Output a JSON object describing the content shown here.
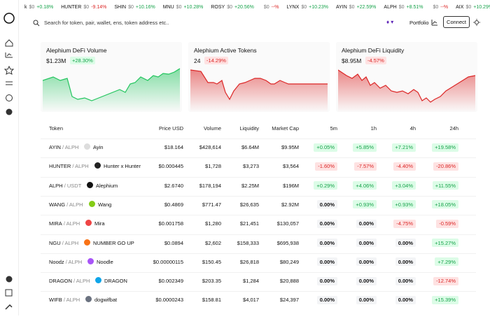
{
  "ticker": [
    {
      "name": "k",
      "price": "$0",
      "change": "+0.18%"
    },
    {
      "name": "HUNTER",
      "price": "$0",
      "change": "-9.14%"
    },
    {
      "name": "SHIN",
      "price": "$0",
      "change": "+10.16%"
    },
    {
      "name": "MNU",
      "price": "$0",
      "change": "+10.28%"
    },
    {
      "name": "ROSY",
      "price": "$0",
      "change": "+20.56%"
    },
    {
      "name": "",
      "price": "$0",
      "change": "--%"
    },
    {
      "name": "LYNX",
      "price": "$0",
      "change": "+10.23%"
    },
    {
      "name": "AYIN",
      "price": "$0",
      "change": "+22.59%"
    },
    {
      "name": "ALPH",
      "price": "$0",
      "change": "+8.51%"
    },
    {
      "name": "",
      "price": "$0",
      "change": "--%"
    },
    {
      "name": "AIX",
      "price": "$0",
      "change": "+10.29%"
    }
  ],
  "header": {
    "search": "Search for token, pair, wallet, ens, token address etc..",
    "portfolio": "Portfolio",
    "connect": "Connect"
  },
  "cards": [
    {
      "title": "Alephium DeFi Volume",
      "value": "$1.23M",
      "change": "+28.30%"
    },
    {
      "title": "Alephium Active Tokens",
      "value": "24",
      "change": "-14.29%"
    },
    {
      "title": "Alephium DeFi Liquidity",
      "value": "$8.95M",
      "change": "-4.57%"
    }
  ],
  "table": {
    "columns": [
      "Token",
      "Price USD",
      "Volume",
      "Liquidity",
      "Market Cap",
      "5m",
      "1h",
      "4h",
      "24h"
    ],
    "rows": [
      {
        "base": "AYIN",
        "quote": "/ ALPH",
        "name": "Ayin",
        "cells": [
          "$18.164",
          "$428,614",
          "$6.64M",
          "$9.95M",
          "+0.05%",
          "+5.85%",
          "+7.21%",
          "+19.58%"
        ]
      },
      {
        "base": "HUNTER",
        "quote": "/ ALPH",
        "name": "Hunter x Hunter",
        "cells": [
          "$0.000445",
          "$1,728",
          "$3,273",
          "$3,564",
          "-1.60%",
          "-7.57%",
          "-4.40%",
          "-20.86%"
        ]
      },
      {
        "base": "ALPH",
        "quote": "/ USDT",
        "name": "Alephium",
        "cells": [
          "$2.6740",
          "$178,194",
          "$2.25M",
          "$196M",
          "+0.29%",
          "+4.06%",
          "+3.04%",
          "+11.55%"
        ]
      },
      {
        "base": "WANG",
        "quote": "/ ALPH",
        "name": "Wang",
        "cells": [
          "$0.4869",
          "$771.47",
          "$26,635",
          "$2.92M",
          "0.00%",
          "+0.93%",
          "+0.93%",
          "+18.05%"
        ]
      },
      {
        "base": "MIRA",
        "quote": "/ ALPH",
        "name": "Mira",
        "cells": [
          "$0.001758",
          "$1,280",
          "$21,451",
          "$130,057",
          "0.00%",
          "0.00%",
          "-4.75%",
          "-0.59%"
        ]
      },
      {
        "base": "NGU",
        "quote": "/ ALPH",
        "name": "NUMBER GO UP",
        "cells": [
          "$0.0894",
          "$2,602",
          "$158,333",
          "$695,938",
          "0.00%",
          "0.00%",
          "0.00%",
          "+15.27%"
        ]
      },
      {
        "base": "Noodz",
        "quote": "/ ALPH",
        "name": "Noodle",
        "cells": [
          "$0.00000115",
          "$150.45",
          "$26,818",
          "$80,249",
          "0.00%",
          "0.00%",
          "0.00%",
          "+7.29%"
        ]
      },
      {
        "base": "DRAGON",
        "quote": "/ ALPH",
        "name": "DRAGON",
        "cells": [
          "$0.002349",
          "$203.35",
          "$1,284",
          "$20,888",
          "0.00%",
          "0.00%",
          "0.00%",
          "-12.74%"
        ]
      },
      {
        "base": "WIFB",
        "quote": "/ ALPH",
        "name": "dogwifbat",
        "cells": [
          "$0.0000243",
          "$158.81",
          "$4,017",
          "$24,397",
          "0.00%",
          "0.00%",
          "0.00%",
          "+15.39%"
        ]
      }
    ]
  }
}
